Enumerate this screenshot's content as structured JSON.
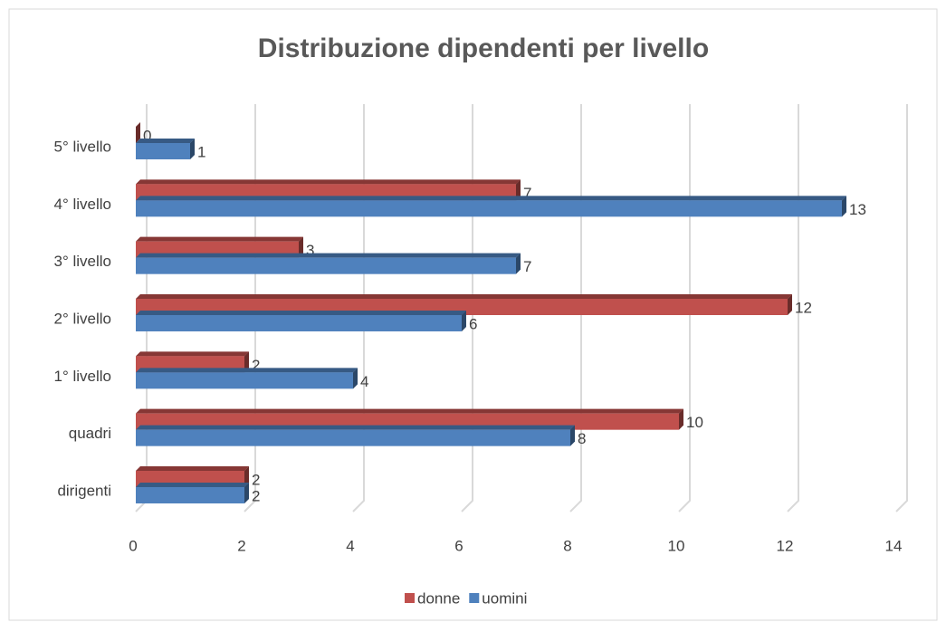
{
  "chart_data": {
    "type": "bar",
    "orientation": "horizontal",
    "title": "Distribuzione dipendenti per livello",
    "categories": [
      "dirigenti",
      "quadri",
      "1° livello",
      "2° livello",
      "3° livello",
      "4° livello",
      "5° livello"
    ],
    "series": [
      {
        "name": "donne",
        "color": "#c0504d",
        "values": [
          2,
          10,
          2,
          12,
          3,
          7,
          0
        ]
      },
      {
        "name": "uomini",
        "color": "#4f81bd",
        "values": [
          2,
          8,
          4,
          6,
          7,
          13,
          1
        ]
      }
    ],
    "xlim": [
      0,
      14
    ],
    "xticks": [
      0,
      2,
      4,
      6,
      8,
      10,
      12,
      14
    ],
    "grid": true,
    "legend": "bottom"
  }
}
